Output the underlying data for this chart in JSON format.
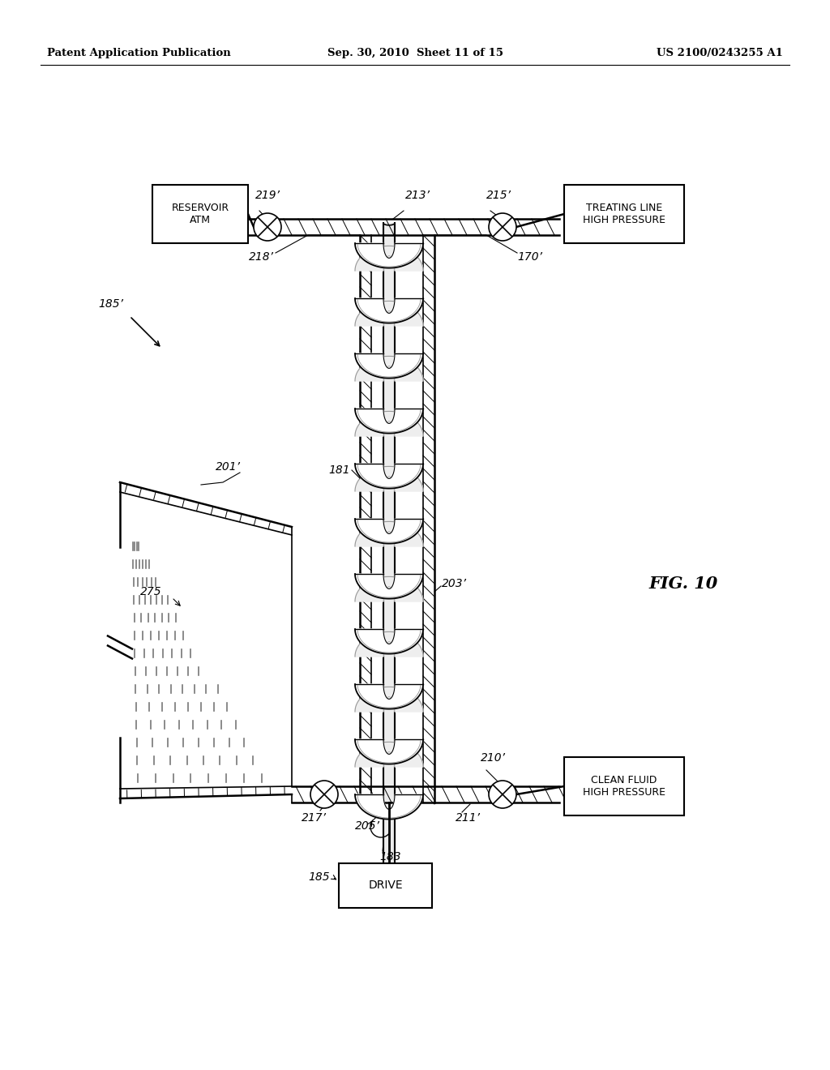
{
  "bg_color": "#ffffff",
  "header_left": "Patent Application Publication",
  "header_center": "Sep. 30, 2010  Sheet 11 of 15",
  "header_right": "US 2100/0243255 A1",
  "fig_label": "FIG. 10",
  "labels": {
    "185_arrow": "185’",
    "201": "201’",
    "275": "275",
    "217": "217’",
    "205": "205’",
    "183": "183",
    "185_drive": "185",
    "219": "219’",
    "218": "218’",
    "213": "213’",
    "215": "215’",
    "170": "170’",
    "181": "181",
    "203": "203’",
    "210": "210’",
    "211": "211’",
    "reservoir": "RESERVOIR\nATM",
    "treating": "TREATING LINE\nHIGH PRESSURE",
    "clean_fluid": "CLEAN FLUID\nHIGH PRESSURE",
    "drive": "DRIVE"
  }
}
